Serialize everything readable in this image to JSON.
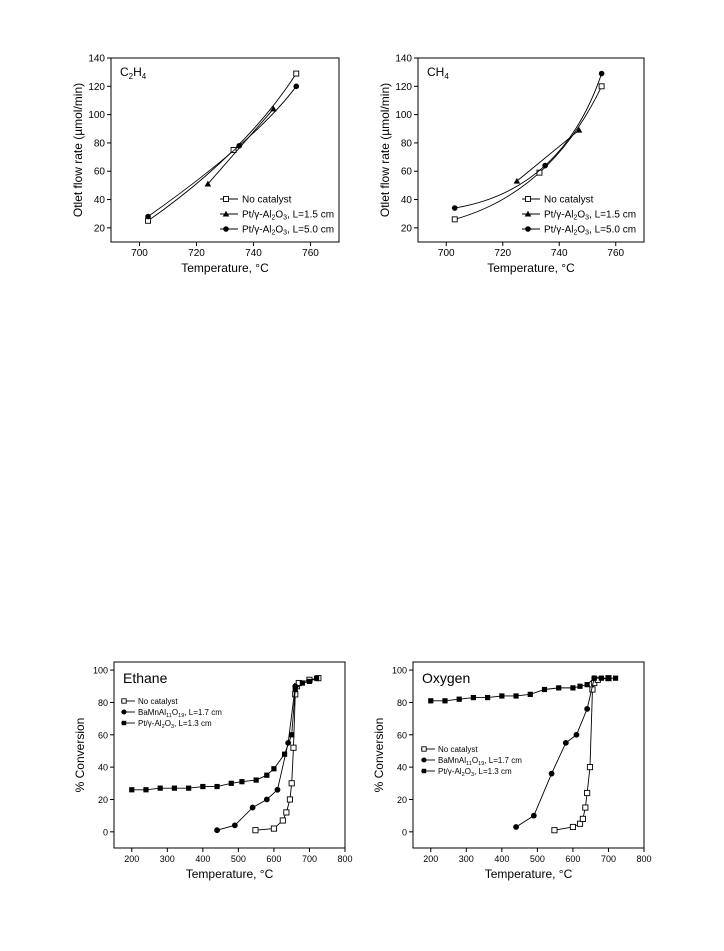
{
  "chart_data": [
    {
      "type": "line",
      "title": "C2H4",
      "title_main": "C",
      "title_sub1": "2",
      "title_mid": "H",
      "title_sub2": "4",
      "xlabel": "Temperature, °C",
      "ylabel": "Otlet flow rate (µmol/min)",
      "xlim": [
        690,
        770
      ],
      "ylim": [
        10,
        140
      ],
      "xticks": [
        700,
        720,
        740,
        760
      ],
      "yticks": [
        20,
        40,
        60,
        80,
        100,
        120,
        140
      ],
      "legend_position": "bottom-right",
      "series": [
        {
          "name": "No catalyst",
          "marker": "open-square",
          "x": [
            703,
            733,
            755
          ],
          "y": [
            25,
            75,
            129
          ]
        },
        {
          "name": "Pt/γ-Al2O3, L=1.5 cm",
          "marker": "filled-triangle",
          "x": [
            724,
            747
          ],
          "y": [
            51,
            104
          ]
        },
        {
          "name": "Pt/γ-Al2O3, L=5.0 cm",
          "marker": "filled-circle",
          "x": [
            703,
            735,
            755
          ],
          "y": [
            28,
            78,
            120
          ]
        }
      ]
    },
    {
      "type": "line",
      "title": "CH4",
      "title_main": "CH",
      "title_sub1": "4",
      "xlabel": "Temperature, °C",
      "ylabel": "Otlet flow rate (µmol/min)",
      "xlim": [
        690,
        770
      ],
      "ylim": [
        10,
        140
      ],
      "xticks": [
        700,
        720,
        740,
        760
      ],
      "yticks": [
        20,
        40,
        60,
        80,
        100,
        120,
        140
      ],
      "legend_position": "bottom-right",
      "series": [
        {
          "name": "No catalyst",
          "marker": "open-square",
          "x": [
            703,
            733,
            755
          ],
          "y": [
            26,
            59,
            120
          ]
        },
        {
          "name": "Pt/γ-Al2O3, L=1.5 cm",
          "marker": "filled-triangle",
          "x": [
            725,
            747
          ],
          "y": [
            53,
            89
          ]
        },
        {
          "name": "Pt/γ-Al2O3, L=5.0 cm",
          "marker": "filled-circle",
          "x": [
            703,
            735,
            755
          ],
          "y": [
            34,
            64,
            129
          ]
        }
      ]
    },
    {
      "type": "line",
      "title": "Ethane",
      "xlabel": "Temperature, °C",
      "ylabel": "% Conversion",
      "xlim": [
        150,
        800
      ],
      "ylim": [
        -10,
        105
      ],
      "xticks": [
        200,
        300,
        400,
        500,
        600,
        700,
        800
      ],
      "yticks": [
        0,
        20,
        40,
        60,
        80,
        100
      ],
      "legend_position": "upper-left",
      "series": [
        {
          "name": "No catalyst",
          "marker": "open-square",
          "x": [
            548,
            600,
            625,
            635,
            645,
            650,
            655,
            660,
            665,
            670,
            700,
            725
          ],
          "y": [
            1,
            2,
            7,
            12,
            20,
            30,
            52,
            85,
            90,
            92,
            94,
            95
          ]
        },
        {
          "name": "BaMnAl11O19, L=1.7 cm",
          "marker": "filled-circle",
          "x": [
            440,
            490,
            540,
            580,
            610,
            640,
            660
          ],
          "y": [
            1,
            4,
            15,
            20,
            26,
            55,
            90
          ]
        },
        {
          "name": "Pt/γ-Al2O3, L=1.3 cm",
          "marker": "filled-square",
          "x": [
            200,
            240,
            280,
            320,
            360,
            400,
            440,
            480,
            510,
            550,
            580,
            600,
            630,
            650,
            660,
            680,
            700,
            720
          ],
          "y": [
            26,
            26,
            27,
            27,
            27,
            28,
            28,
            30,
            31,
            32,
            35,
            39,
            48,
            60,
            88,
            92,
            93,
            95
          ]
        }
      ]
    },
    {
      "type": "line",
      "title": "Oxygen",
      "xlabel": "Temperature, °C",
      "ylabel": "% Conversion",
      "xlim": [
        150,
        800
      ],
      "ylim": [
        -10,
        105
      ],
      "xticks": [
        200,
        300,
        400,
        500,
        600,
        700,
        800
      ],
      "yticks": [
        0,
        20,
        40,
        60,
        80,
        100
      ],
      "legend_position": "middle-left",
      "series": [
        {
          "name": "No catalyst",
          "marker": "open-square",
          "x": [
            548,
            600,
            620,
            628,
            635,
            640,
            648,
            655,
            660,
            670,
            700
          ],
          "y": [
            1,
            3,
            5,
            8,
            15,
            24,
            40,
            88,
            92,
            94,
            95
          ]
        },
        {
          "name": "BaMnAl11O19, L=1.7 cm",
          "marker": "filled-circle",
          "x": [
            440,
            490,
            540,
            580,
            610,
            640,
            660
          ],
          "y": [
            3,
            10,
            36,
            55,
            60,
            76,
            95
          ]
        },
        {
          "name": "Pt/γ-Al2O3, L=1.3 cm",
          "marker": "filled-square",
          "x": [
            200,
            240,
            280,
            320,
            360,
            400,
            440,
            480,
            520,
            560,
            600,
            620,
            640,
            660,
            680,
            700,
            720
          ],
          "y": [
            81,
            81,
            82,
            83,
            83,
            84,
            84,
            85,
            88,
            89,
            89,
            90,
            91,
            95,
            95,
            95,
            95
          ]
        }
      ]
    }
  ],
  "legend_labels": {
    "no_catalyst": "No catalyst",
    "pt_15": "Pt/γ-Al2O3, L=1.5 cm",
    "pt_50": "Pt/γ-Al2O3, L=5.0 cm",
    "ba_17": "BaMnAl11O19, L=1.7 cm",
    "pt_13": "Pt/γ-Al2O3, L=1.3 cm"
  }
}
